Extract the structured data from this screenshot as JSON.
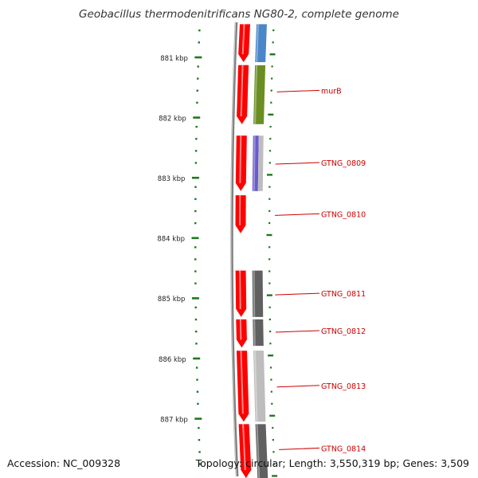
{
  "title": "Geobacillus thermodenitrificans NG80-2, complete genome",
  "footer": {
    "accession": "Accession: NC_009328",
    "topology": "Topology: circular; Length: 3,550,319 bp; Genes: 3,509"
  },
  "colors": {
    "tick": "#1e7a1e",
    "label": "#cc0000",
    "backbone": "#808080",
    "gene_red": "#ff0000",
    "blue": "#4a86c8",
    "green": "#6b8e23",
    "purple": "#6a5acd",
    "dark_gray": "#606060",
    "light_gray": "#bdbdbd"
  },
  "axis": {
    "unit": "kbp",
    "ticks": [
      {
        "kbp": 881,
        "label": "881 kbp"
      },
      {
        "kbp": 882,
        "label": "882 kbp"
      },
      {
        "kbp": 883,
        "label": "883 kbp"
      },
      {
        "kbp": 884,
        "label": "884 kbp"
      },
      {
        "kbp": 885,
        "label": "885 kbp"
      },
      {
        "kbp": 886,
        "label": "886 kbp"
      },
      {
        "kbp": 887,
        "label": "887 kbp"
      }
    ]
  },
  "genes": [
    {
      "start": 880.45,
      "end": 881.08,
      "color": "gene_red"
    },
    {
      "start": 881.13,
      "end": 882.11,
      "color": "gene_red"
    },
    {
      "start": 882.3,
      "end": 883.22,
      "color": "gene_red"
    },
    {
      "start": 883.29,
      "end": 883.92,
      "color": "gene_red"
    },
    {
      "start": 884.54,
      "end": 885.31,
      "color": "gene_red"
    },
    {
      "start": 885.35,
      "end": 885.82,
      "color": "gene_red"
    },
    {
      "start": 885.87,
      "end": 887.05,
      "color": "gene_red"
    },
    {
      "start": 887.09,
      "end": 888.0,
      "color": "gene_red"
    }
  ],
  "cds": [
    {
      "start": 880.45,
      "end": 881.08,
      "color": "blue"
    },
    {
      "start": 881.13,
      "end": 882.11,
      "color": "green"
    },
    {
      "start": 882.3,
      "end": 883.22,
      "color": "purple",
      "stripe": "light_gray"
    },
    {
      "start": 884.54,
      "end": 885.31,
      "color": "dark_gray"
    },
    {
      "start": 885.35,
      "end": 885.79,
      "color": "dark_gray"
    },
    {
      "start": 885.87,
      "end": 887.05,
      "color": "light_gray"
    },
    {
      "start": 887.09,
      "end": 888.0,
      "color": "dark_gray"
    }
  ],
  "features": [
    {
      "label": "murB",
      "kbp": 881.56
    },
    {
      "label": "GTNG_0809",
      "kbp": 882.76
    },
    {
      "label": "GTNG_0810",
      "kbp": 883.61
    },
    {
      "label": "GTNG_0811",
      "kbp": 884.93
    },
    {
      "label": "GTNG_0812",
      "kbp": 885.55
    },
    {
      "label": "GTNG_0813",
      "kbp": 886.46
    },
    {
      "label": "GTNG_0814",
      "kbp": 887.5
    }
  ]
}
